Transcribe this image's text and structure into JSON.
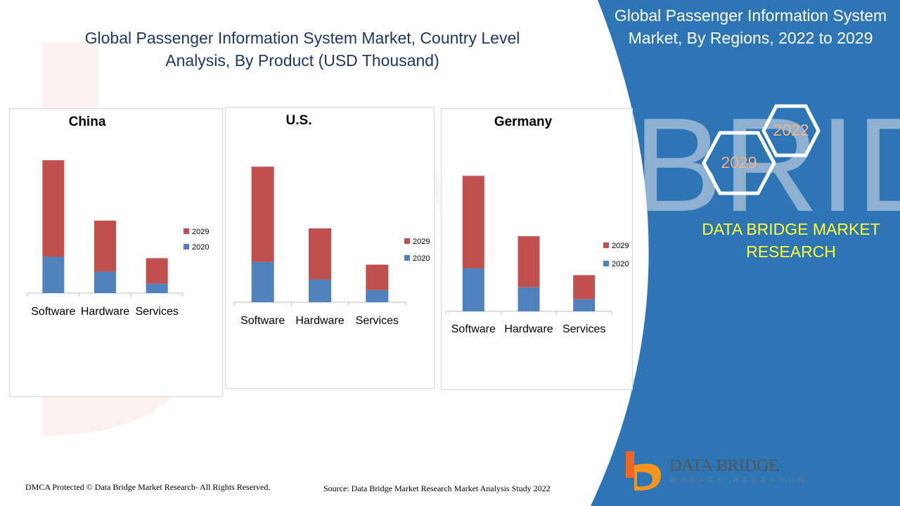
{
  "page_title": "Global Passenger Information System  Market, Country Level Analysis, By Product (USD Thousand)",
  "regions_title": "Global Passenger Information System Market, By Regions, 2022 to 2029",
  "hex_labels": {
    "year_a": "2022",
    "year_b": "2029"
  },
  "brand_line1": "DATA BRIDGE MARKET",
  "brand_line2": "RESEARCH",
  "footer": {
    "copyright": "DMCA Protected © Data Bridge Market Research- All Rights Reserved.",
    "source": "Source: Data Bridge Market Research Market Analysis Study 2022"
  },
  "logo": {
    "name": "DATA BRIDGE",
    "tagline": "MARKET RESEARCH"
  },
  "colors": {
    "series_2020": "#4f81bd",
    "series_2029": "#c0504d",
    "panel_bg": "#2e75b6",
    "title": "#1f3864"
  },
  "chart_data": [
    {
      "type": "bar",
      "stacked": true,
      "title": "China",
      "categories": [
        "Software",
        "Hardware",
        "Services"
      ],
      "series": [
        {
          "name": "2020",
          "values": [
            27,
            16,
            7
          ]
        },
        {
          "name": "2029",
          "values": [
            72,
            38,
            19
          ]
        }
      ],
      "ymax": 110,
      "legend": "right"
    },
    {
      "type": "bar",
      "stacked": true,
      "title": "U.S.",
      "categories": [
        "Software",
        "Hardware",
        "Services"
      ],
      "series": [
        {
          "name": "2020",
          "values": [
            30,
            17,
            9
          ]
        },
        {
          "name": "2029",
          "values": [
            71,
            38,
            19
          ]
        }
      ],
      "ymax": 110,
      "legend": "right"
    },
    {
      "type": "bar",
      "stacked": true,
      "title": "Germany",
      "categories": [
        "Software",
        "Hardware",
        "Services"
      ],
      "series": [
        {
          "name": "2020",
          "values": [
            32,
            18,
            9
          ]
        },
        {
          "name": "2029",
          "values": [
            69,
            38,
            18
          ]
        }
      ],
      "ymax": 110,
      "legend": "right"
    }
  ]
}
